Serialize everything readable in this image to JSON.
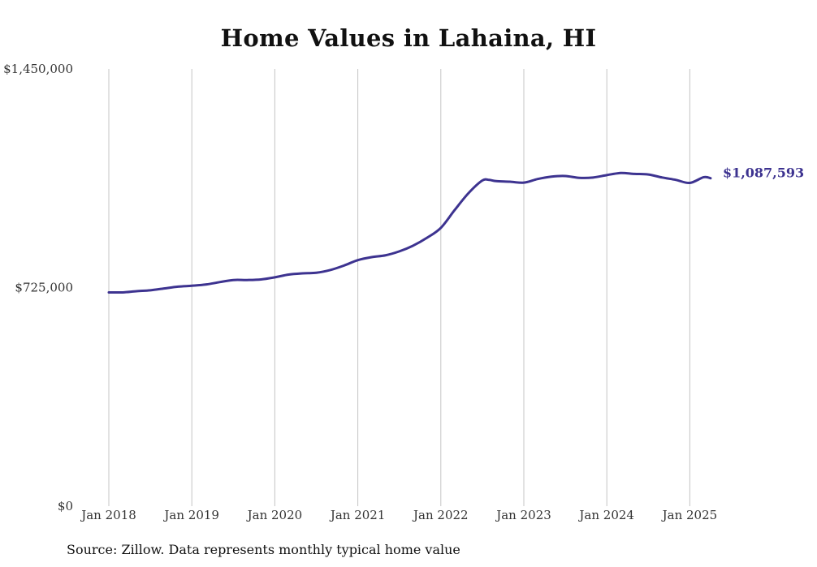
{
  "chart_data": {
    "type": "line",
    "title": "Home Values in Lahaina, HI",
    "xlabel": "",
    "ylabel": "",
    "ylim": [
      0,
      1450000
    ],
    "xlim": [
      "2018-01",
      "2025-04"
    ],
    "x_ticks": [
      {
        "label": "Jan 2018",
        "date": "2018-01"
      },
      {
        "label": "Jan 2019",
        "date": "2019-01"
      },
      {
        "label": "Jan 2020",
        "date": "2020-01"
      },
      {
        "label": "Jan 2021",
        "date": "2021-01"
      },
      {
        "label": "Jan 2022",
        "date": "2022-01"
      },
      {
        "label": "Jan 2023",
        "date": "2023-01"
      },
      {
        "label": "Jan 2024",
        "date": "2024-01"
      },
      {
        "label": "Jan 2025",
        "date": "2025-01"
      }
    ],
    "y_ticks": [
      {
        "label": "$1,450,000",
        "value": 1450000
      },
      {
        "label": "$725,000",
        "value": 725000
      },
      {
        "label": "$0",
        "value": 0
      }
    ],
    "grid": "vertical",
    "line_color": "#3d3390",
    "end_label": "$1,087,593",
    "series": [
      {
        "x": [
          "2018-01",
          "2018-03",
          "2018-05",
          "2018-07",
          "2018-09",
          "2018-11",
          "2019-01",
          "2019-03",
          "2019-05",
          "2019-07",
          "2019-09",
          "2019-11",
          "2020-01",
          "2020-03",
          "2020-05",
          "2020-07",
          "2020-09",
          "2020-11",
          "2021-01",
          "2021-03",
          "2021-05",
          "2021-07",
          "2021-09",
          "2021-11",
          "2022-01",
          "2022-03",
          "2022-05",
          "2022-07",
          "2022-08",
          "2022-09",
          "2022-11",
          "2023-01",
          "2023-03",
          "2023-05",
          "2023-07",
          "2023-09",
          "2023-11",
          "2024-01",
          "2024-03",
          "2024-05",
          "2024-07",
          "2024-09",
          "2024-11",
          "2025-01",
          "2025-03",
          "2025-04"
        ],
        "values": [
          709000,
          709000,
          713000,
          716000,
          722000,
          728000,
          731000,
          735000,
          743000,
          750000,
          750000,
          752000,
          759000,
          768000,
          772000,
          774000,
          783000,
          798000,
          816000,
          826000,
          832000,
          845000,
          864000,
          890000,
          923000,
          982000,
          1038000,
          1080000,
          1082000,
          1078000,
          1076000,
          1073000,
          1085000,
          1093000,
          1095000,
          1089000,
          1090000,
          1098000,
          1105000,
          1102000,
          1100000,
          1090000,
          1082000,
          1072000,
          1091000,
          1087593
        ]
      }
    ]
  },
  "footer": {
    "source": "Source: Zillow. Data represents monthly typical home value"
  }
}
